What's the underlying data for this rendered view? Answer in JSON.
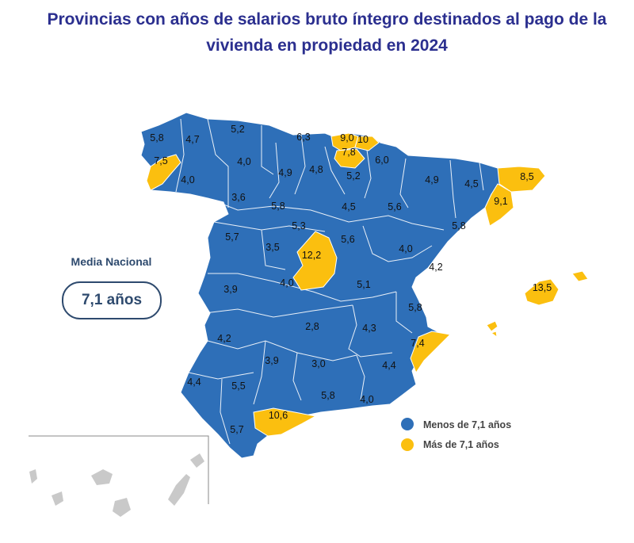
{
  "title_line1": "Provincias con años de salarios bruto íntegro destinados al pago de la",
  "title_line2": "vivienda en propiedad en 2024",
  "national_average": {
    "label": "Media Nacional",
    "value": "7,1 años"
  },
  "colors": {
    "below": "#2e6fb8",
    "above": "#fbbf0f",
    "title": "#2b2f8f",
    "canarias": "#c9c9c9"
  },
  "legend": [
    {
      "label": "Menos de 7,1 años",
      "color": "#2e6fb8"
    },
    {
      "label": "Más de 7,1 años",
      "color": "#fbbf0f"
    }
  ],
  "province_values": [
    {
      "value": "5,8",
      "category": "below"
    },
    {
      "value": "4,7",
      "category": "below"
    },
    {
      "value": "5,2",
      "category": "below"
    },
    {
      "value": "6,3",
      "category": "below"
    },
    {
      "value": "9,0",
      "category": "above"
    },
    {
      "value": "10",
      "category": "above"
    },
    {
      "value": "7,8",
      "category": "above"
    },
    {
      "value": "7,5",
      "category": "above"
    },
    {
      "value": "4,0",
      "category": "below"
    },
    {
      "value": "4,0",
      "category": "below"
    },
    {
      "value": "4,9",
      "category": "below"
    },
    {
      "value": "4,8",
      "category": "below"
    },
    {
      "value": "6,0",
      "category": "below"
    },
    {
      "value": "5,2",
      "category": "below"
    },
    {
      "value": "4,9",
      "category": "below"
    },
    {
      "value": "4,5",
      "category": "below"
    },
    {
      "value": "8,5",
      "category": "above"
    },
    {
      "value": "3,6",
      "category": "below"
    },
    {
      "value": "5,8",
      "category": "below"
    },
    {
      "value": "4,5",
      "category": "below"
    },
    {
      "value": "5,6",
      "category": "below"
    },
    {
      "value": "9,1",
      "category": "above"
    },
    {
      "value": "5,3",
      "category": "below"
    },
    {
      "value": "5,8",
      "category": "below"
    },
    {
      "value": "5,7",
      "category": "below"
    },
    {
      "value": "3,5",
      "category": "below"
    },
    {
      "value": "12,2",
      "category": "above"
    },
    {
      "value": "5,6",
      "category": "below"
    },
    {
      "value": "4,0",
      "category": "below"
    },
    {
      "value": "4,2",
      "category": "below"
    },
    {
      "value": "13,5",
      "category": "above"
    },
    {
      "value": "4,0",
      "category": "below"
    },
    {
      "value": "3,9",
      "category": "below"
    },
    {
      "value": "5,1",
      "category": "below"
    },
    {
      "value": "5,8",
      "category": "below"
    },
    {
      "value": "2,8",
      "category": "below"
    },
    {
      "value": "4,3",
      "category": "below"
    },
    {
      "value": "4,2",
      "category": "below"
    },
    {
      "value": "7,4",
      "category": "above"
    },
    {
      "value": "3,9",
      "category": "below"
    },
    {
      "value": "3,0",
      "category": "below"
    },
    {
      "value": "4,4",
      "category": "below"
    },
    {
      "value": "4,4",
      "category": "below"
    },
    {
      "value": "5,5",
      "category": "below"
    },
    {
      "value": "5,8",
      "category": "below"
    },
    {
      "value": "4,0",
      "category": "below"
    },
    {
      "value": "10,6",
      "category": "above"
    },
    {
      "value": "5,7",
      "category": "below"
    }
  ]
}
